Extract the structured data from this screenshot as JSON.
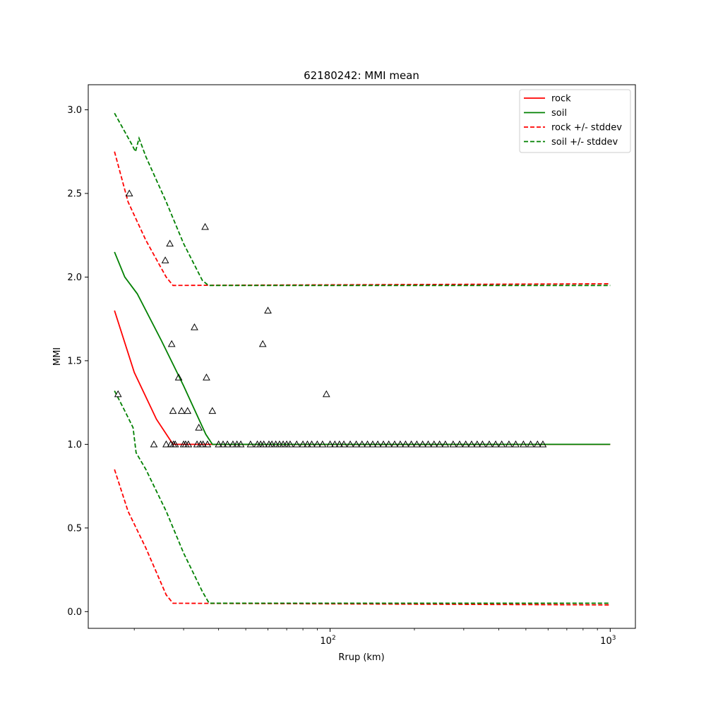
{
  "chart_data": {
    "type": "line",
    "title": "62180242: MMI mean",
    "xlabel": "Rrup (km)",
    "ylabel": "MMI",
    "xscale": "log",
    "xlim": [
      13.7,
      1230
    ],
    "ylim": [
      -0.1,
      3.15
    ],
    "xticks": [
      {
        "value": 100,
        "base": "10",
        "exp": "2"
      },
      {
        "value": 1000,
        "base": "10",
        "exp": "3"
      }
    ],
    "yticks": [
      0.0,
      0.5,
      1.0,
      1.5,
      2.0,
      2.5,
      3.0
    ],
    "legend_position": "top-right",
    "legend": [
      {
        "label": "rock",
        "color": "#ff0000",
        "style": "solid"
      },
      {
        "label": "soil",
        "color": "#008000",
        "style": "solid"
      },
      {
        "label": "rock +/- stddev",
        "color": "#ff0000",
        "style": "dashed"
      },
      {
        "label": "soil +/- stddev",
        "color": "#008000",
        "style": "dashed"
      }
    ],
    "series": [
      {
        "name": "rock",
        "color": "#ff0000",
        "style": "solid",
        "x": [
          17,
          20,
          24,
          27.5,
          1000
        ],
        "y": [
          1.8,
          1.43,
          1.15,
          1.0,
          1.0
        ]
      },
      {
        "name": "soil",
        "color": "#008000",
        "style": "solid",
        "x": [
          17,
          18.5,
          20.5,
          25,
          30,
          36,
          38,
          1000
        ],
        "y": [
          2.15,
          2.0,
          1.9,
          1.62,
          1.35,
          1.06,
          1.0,
          1.0
        ]
      },
      {
        "name": "rock +/- stddev",
        "color": "#ff0000",
        "style": "dashed",
        "x": [
          17,
          19,
          22,
          26,
          27.5,
          1000
        ],
        "y": [
          2.75,
          2.45,
          2.22,
          2.0,
          1.95,
          1.96
        ]
      },
      {
        "name": "rock +/- stddev",
        "color": "#ff0000",
        "style": "dashed",
        "x": [
          17,
          19,
          22,
          26,
          27.5,
          1000
        ],
        "y": [
          0.85,
          0.6,
          0.38,
          0.1,
          0.05,
          0.04
        ]
      },
      {
        "name": "soil +/- stddev",
        "color": "#008000",
        "style": "dashed",
        "x": [
          17,
          19.5,
          20.2,
          20.8,
          22,
          26,
          30,
          35,
          36.8,
          1000
        ],
        "y": [
          2.98,
          2.8,
          2.75,
          2.83,
          2.72,
          2.45,
          2.2,
          1.98,
          1.95,
          1.95
        ]
      },
      {
        "name": "soil +/- stddev",
        "color": "#008000",
        "style": "dashed",
        "x": [
          17,
          18.5,
          19.8,
          20.3,
          22,
          26,
          30,
          35,
          37,
          1000
        ],
        "y": [
          1.32,
          1.2,
          1.1,
          0.95,
          0.85,
          0.6,
          0.35,
          0.12,
          0.05,
          0.05
        ]
      }
    ],
    "observations": {
      "marker": "triangle",
      "points": [
        [
          17.5,
          1.3
        ],
        [
          19.2,
          2.5
        ],
        [
          23.5,
          1.0
        ],
        [
          25.8,
          2.1
        ],
        [
          26.0,
          1.0
        ],
        [
          26.8,
          2.2
        ],
        [
          27.2,
          1.6
        ],
        [
          27.0,
          1.0
        ],
        [
          27.6,
          1.0
        ],
        [
          27.5,
          1.2
        ],
        [
          28.0,
          1.0
        ],
        [
          28.8,
          1.4
        ],
        [
          29.5,
          1.2
        ],
        [
          30.0,
          1.0
        ],
        [
          30.5,
          1.0
        ],
        [
          31.0,
          1.2
        ],
        [
          31.2,
          1.0
        ],
        [
          32.8,
          1.7
        ],
        [
          33.5,
          1.0
        ],
        [
          34.0,
          1.1
        ],
        [
          34.5,
          1.0
        ],
        [
          35.2,
          1.0
        ],
        [
          35.8,
          2.3
        ],
        [
          36.2,
          1.4
        ],
        [
          36.5,
          1.0
        ],
        [
          38.0,
          1.2
        ],
        [
          40.0,
          1.0
        ],
        [
          41.5,
          1.0
        ],
        [
          43.0,
          1.0
        ],
        [
          45.0,
          1.0
        ],
        [
          46.5,
          1.0
        ],
        [
          48.0,
          1.0
        ],
        [
          52.0,
          1.0
        ],
        [
          55.0,
          1.0
        ],
        [
          56.5,
          1.0
        ],
        [
          57.5,
          1.6
        ],
        [
          58.0,
          1.0
        ],
        [
          60.0,
          1.8
        ],
        [
          60.5,
          1.0
        ],
        [
          62.0,
          1.0
        ],
        [
          64.0,
          1.0
        ],
        [
          66.0,
          1.0
        ],
        [
          68.0,
          1.0
        ],
        [
          70.0,
          1.0
        ],
        [
          72.0,
          1.0
        ],
        [
          76.0,
          1.0
        ],
        [
          80.0,
          1.0
        ],
        [
          83.0,
          1.0
        ],
        [
          86.0,
          1.0
        ],
        [
          90.0,
          1.0
        ],
        [
          94.0,
          1.0
        ],
        [
          97.0,
          1.3
        ],
        [
          100.0,
          1.0
        ],
        [
          104.0,
          1.0
        ],
        [
          108.0,
          1.0
        ],
        [
          112.0,
          1.0
        ],
        [
          118.0,
          1.0
        ],
        [
          124.0,
          1.0
        ],
        [
          130.0,
          1.0
        ],
        [
          136.0,
          1.0
        ],
        [
          142.0,
          1.0
        ],
        [
          148.0,
          1.0
        ],
        [
          155.0,
          1.0
        ],
        [
          162.0,
          1.0
        ],
        [
          170.0,
          1.0
        ],
        [
          178.0,
          1.0
        ],
        [
          186.0,
          1.0
        ],
        [
          195.0,
          1.0
        ],
        [
          204.0,
          1.0
        ],
        [
          214.0,
          1.0
        ],
        [
          224.0,
          1.0
        ],
        [
          235.0,
          1.0
        ],
        [
          246.0,
          1.0
        ],
        [
          258.0,
          1.0
        ],
        [
          275.0,
          1.0
        ],
        [
          290.0,
          1.0
        ],
        [
          305.0,
          1.0
        ],
        [
          320.0,
          1.0
        ],
        [
          335.0,
          1.0
        ],
        [
          350.0,
          1.0
        ],
        [
          370.0,
          1.0
        ],
        [
          390.0,
          1.0
        ],
        [
          410.0,
          1.0
        ],
        [
          435.0,
          1.0
        ],
        [
          460.0,
          1.0
        ],
        [
          490.0,
          1.0
        ],
        [
          520.0,
          1.0
        ],
        [
          550.0,
          1.0
        ],
        [
          575.0,
          1.0
        ]
      ]
    }
  }
}
